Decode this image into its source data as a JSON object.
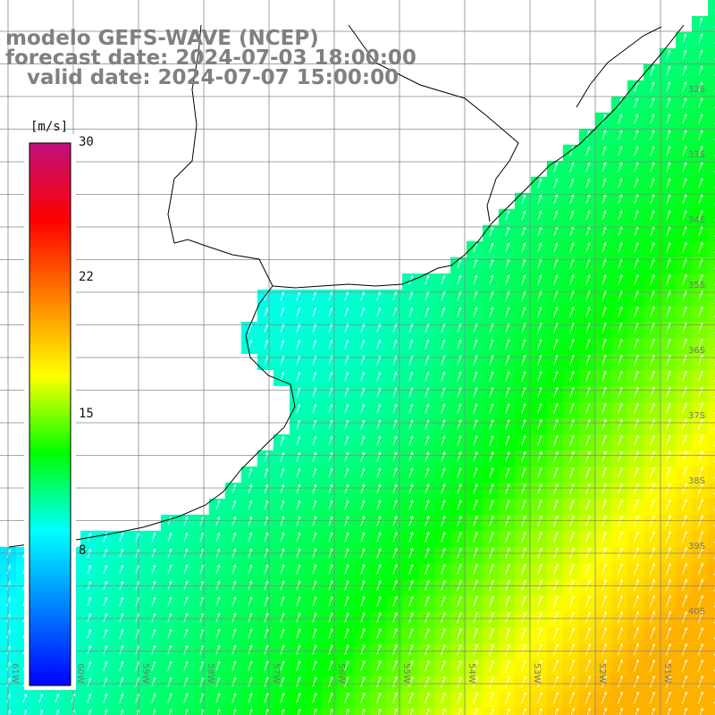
{
  "header": {
    "line1": "modelo GEFS-WAVE (NCEP)",
    "line2": "forecast date: 2024-07-03 18:00:00",
    "line3": "  valid date: 2024-07-07 15:00:00"
  },
  "colorbar": {
    "unit": "[m/s]",
    "ticks": [
      "30",
      "22",
      "15",
      "8"
    ],
    "tick_values": [
      30,
      22,
      15,
      8
    ],
    "colors": [
      "#0000ff",
      "#0080ff",
      "#00ffff",
      "#00ff00",
      "#ffff00",
      "#ff8000",
      "#ff0000",
      "#c0107a"
    ]
  },
  "lat_labels": [
    "32S",
    "33S",
    "34S",
    "35S",
    "36S",
    "37S",
    "38S",
    "39S",
    "40S"
  ],
  "lon_labels": [
    "61W",
    "60W",
    "59W",
    "58W",
    "57W",
    "56W",
    "55W",
    "54W",
    "53W",
    "52W",
    "51W"
  ],
  "colors": {
    "land": "#ffffff",
    "grid": "#888888",
    "coast": "#000000",
    "arrow": "#ffffff"
  }
}
